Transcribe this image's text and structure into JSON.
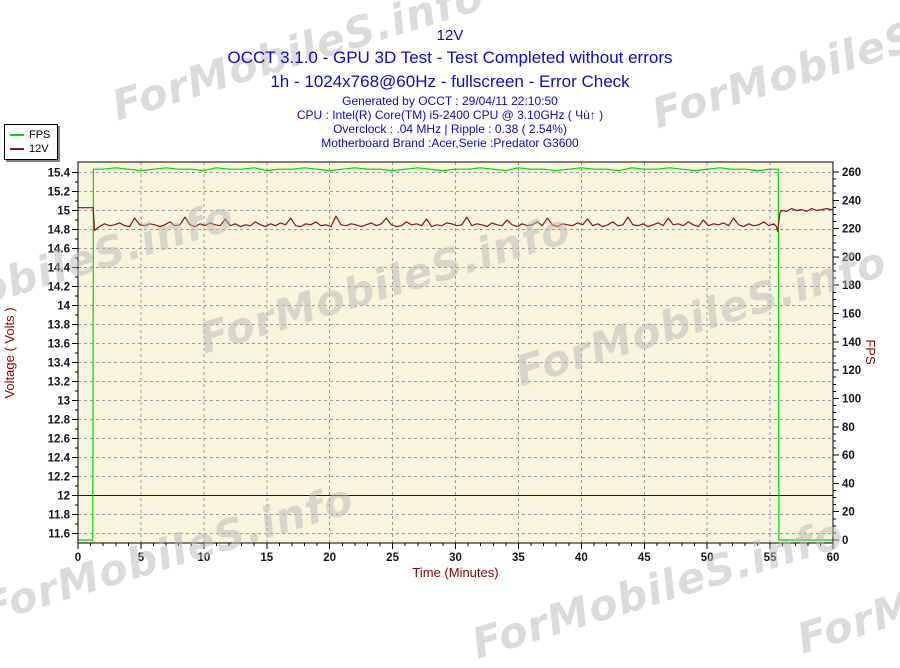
{
  "titles": {
    "chart_title": "12V",
    "line2": "OCCT 3.1.0 - GPU 3D Test - Test Completed without errors",
    "line3": "1h - 1024x768@60Hz - fullscreen - Error Check",
    "info": [
      "Generated by OCCT : 29/04/11 22:10:50",
      "CPU : Intel(R) Core(TM) i5-2400 CPU @ 3.10GHz ( Чù↑ )",
      "Overclock : .04 MHz | Ripple : 0.38 ( 2.54%)",
      "Motherboard Brand :Acer,Serie :Predator G3600"
    ]
  },
  "legend": {
    "items": [
      {
        "label": "FPS",
        "color": "#00d900"
      },
      {
        "label": "12V",
        "color": "#8b1414"
      }
    ]
  },
  "watermark": {
    "text": "ForMobileS.info"
  },
  "colors": {
    "plot_bg": "#f9f4de",
    "grid": "#9b9b9b",
    "frame": "#000000",
    "tick_label": "#15151f",
    "axis_label": "#8b0000",
    "title_text": "#0a0ad2",
    "reference_line": "#0000dd"
  },
  "chart_data": {
    "type": "line",
    "title": "12V",
    "xlabel": "Time (Minutes)",
    "ylabel_left": "Voltage ( Volts )",
    "ylabel_right": "FPS",
    "grid": true,
    "legend_position": "top-left",
    "x_axis": {
      "min": 0,
      "max": 60,
      "minor_step": 1,
      "label_step": 5
    },
    "y_left": {
      "min": 11.6,
      "max": 15.4,
      "minor_step": 0.1,
      "label_step": 0.2
    },
    "y_right": {
      "min": 0,
      "max": 260,
      "minor_step": 5,
      "label_step": 20
    },
    "reference_line": {
      "axis": "left",
      "value": 12,
      "color": "#0000dd"
    },
    "series": [
      {
        "name": "FPS",
        "axis": "right",
        "color": "#00d900",
        "summary": "0 fps until ~1.2 min, ~262 fps during test, drops to 0 at ~55.7 min",
        "segments": [
          {
            "points": [
              [
                0,
                0
              ],
              [
                1.18,
                0
              ],
              [
                1.22,
                262
              ]
            ]
          },
          {
            "t0": 2,
            "dt": 1,
            "values": [
              262,
              263,
              262,
              261,
              262,
              263,
              262,
              262,
              261,
              263,
              262,
              262,
              263,
              261,
              262,
              262,
              263,
              262,
              261,
              262,
              263,
              262,
              262,
              261,
              262,
              263,
              262,
              261,
              262,
              262,
              263,
              262,
              261,
              263,
              262,
              262,
              261,
              262,
              263,
              262,
              262,
              261,
              263,
              262,
              262,
              263,
              262,
              261,
              262,
              263,
              262,
              262,
              261,
              262
            ]
          },
          {
            "points": [
              [
                55.65,
                262
              ],
              [
                55.7,
                0
              ],
              [
                60,
                0
              ]
            ]
          }
        ]
      },
      {
        "name": "12V",
        "axis": "left",
        "color": "#8b1414",
        "summary": "15.03 V idle, noisy ~14.85 V under load with spikes to ~14.94, returns to ~15.0 V after 55.7 min",
        "segments": [
          {
            "points": [
              [
                0,
                15.03
              ],
              [
                1.2,
                15.03
              ],
              [
                1.28,
                14.88
              ]
            ]
          },
          {
            "t0": 1.3,
            "dt": 0.4,
            "values": [
              14.79,
              14.83,
              14.86,
              14.84,
              14.85,
              14.87,
              14.84,
              14.83,
              14.92,
              14.85,
              14.84,
              14.86,
              14.85,
              14.83,
              14.85,
              14.88,
              14.84,
              14.85,
              14.93,
              14.85,
              14.83,
              14.86,
              14.84,
              14.87,
              14.85,
              14.84,
              14.91,
              14.84,
              14.86,
              14.83,
              14.85,
              14.84,
              14.88,
              14.85,
              14.83,
              14.86,
              14.84,
              14.87,
              14.85,
              14.92,
              14.84,
              14.83,
              14.86,
              14.85,
              14.88,
              14.84,
              14.85,
              14.83,
              14.94,
              14.85,
              14.84,
              14.86,
              14.85,
              14.83,
              14.85,
              14.87,
              14.84,
              14.86,
              14.92,
              14.85,
              14.83,
              14.84,
              14.88,
              14.85,
              14.86,
              14.84,
              14.91,
              14.83,
              14.85,
              14.84,
              14.87,
              14.86,
              14.84,
              14.85,
              14.93,
              14.84,
              14.86,
              14.85,
              14.83,
              14.87,
              14.85,
              14.84,
              14.9,
              14.85,
              14.83,
              14.86,
              14.84,
              14.85,
              14.88,
              14.84,
              14.92,
              14.85,
              14.83,
              14.86,
              14.85,
              14.84,
              14.87,
              14.85,
              14.91,
              14.84,
              14.86,
              14.83,
              14.85,
              14.88,
              14.84,
              14.85,
              14.93,
              14.85,
              14.84,
              14.86,
              14.83,
              14.85,
              14.87,
              14.84,
              14.92,
              14.85,
              14.86,
              14.84,
              14.88,
              14.85,
              14.83,
              14.9,
              14.84,
              14.86,
              14.85,
              14.87,
              14.84,
              14.92,
              14.85,
              14.83,
              14.86,
              14.84,
              14.85,
              14.88,
              14.84,
              14.86
            ]
          },
          {
            "points": [
              [
                55.5,
                14.83
              ],
              [
                55.6,
                14.78
              ],
              [
                55.78,
                14.97
              ]
            ]
          },
          {
            "t0": 55.9,
            "dt": 0.4,
            "values": [
              15.0,
              14.99,
              15.02,
              15.0,
              15.01,
              14.99,
              15.02,
              15.0,
              15.01,
              15.02,
              15.01
            ]
          },
          {
            "points": [
              [
                60,
                15.01
              ]
            ]
          }
        ]
      }
    ]
  }
}
